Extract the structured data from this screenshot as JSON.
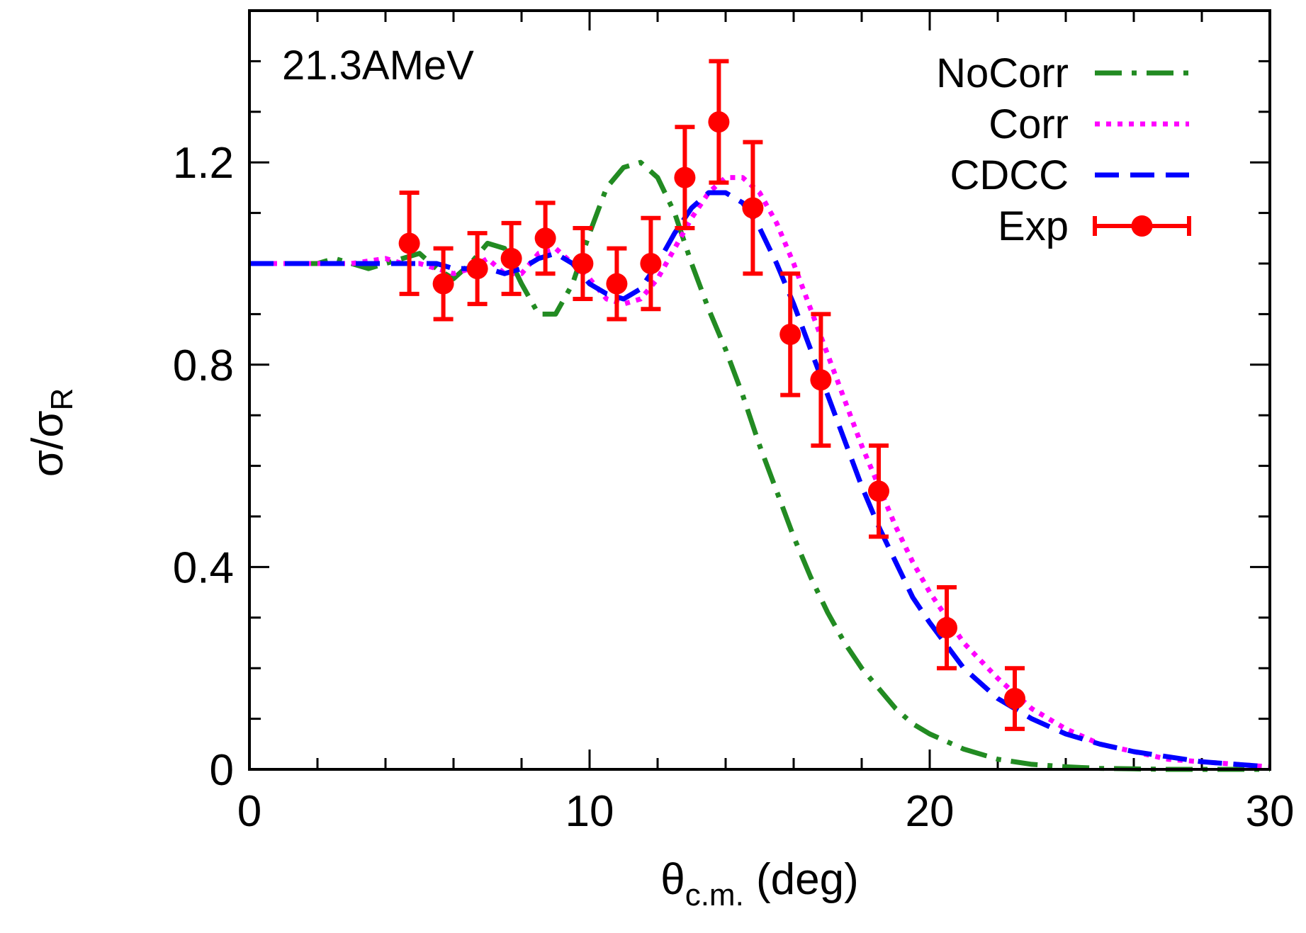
{
  "chart_data": {
    "type": "line",
    "annotation": "21.3AMeV",
    "xlabel": {
      "main": "θ",
      "sub": "c.m.",
      "rest": " (deg)"
    },
    "ylabel": {
      "main": "σ/σ",
      "sub": "R"
    },
    "xlim": [
      0,
      30
    ],
    "ylim": [
      0,
      1.5
    ],
    "x_ticks": [
      0,
      10,
      20,
      30
    ],
    "x_tick_labels": [
      "0",
      "10",
      "20",
      "30"
    ],
    "x_minor_step": 2,
    "y_ticks": [
      0,
      0.4,
      0.8,
      1.2
    ],
    "y_tick_labels": [
      "0",
      "0.4",
      "0.8",
      "1.2"
    ],
    "y_minor_step": 0.1,
    "grid": false,
    "legend_position": "top-right",
    "series": [
      {
        "name": "NoCorr",
        "style": "dash-dot",
        "color": "#228B22",
        "x": [
          0,
          1,
          2,
          2.5,
          3,
          3.5,
          4,
          4.5,
          5,
          5.5,
          6,
          6.5,
          7,
          7.5,
          8,
          8.5,
          9,
          9.5,
          10,
          10.5,
          11,
          11.5,
          12,
          12.5,
          13,
          13.5,
          14,
          14.5,
          15,
          15.5,
          16,
          16.5,
          17,
          17.5,
          18,
          18.5,
          19,
          19.5,
          20,
          21,
          22,
          23,
          24,
          25,
          26,
          27,
          28,
          29,
          30
        ],
        "y": [
          1.0,
          1.0,
          1.0,
          1.01,
          1.0,
          0.99,
          1.0,
          1.01,
          1.02,
          0.99,
          0.97,
          1.0,
          1.04,
          1.03,
          0.96,
          0.9,
          0.9,
          0.96,
          1.06,
          1.15,
          1.19,
          1.2,
          1.17,
          1.1,
          1.0,
          0.91,
          0.83,
          0.74,
          0.64,
          0.55,
          0.46,
          0.38,
          0.31,
          0.25,
          0.2,
          0.16,
          0.12,
          0.09,
          0.07,
          0.04,
          0.02,
          0.01,
          0.005,
          0.002,
          0.001,
          0.0,
          0.0,
          0.0,
          0.0
        ]
      },
      {
        "name": "Corr",
        "style": "dotted",
        "color": "#FF00FF",
        "x": [
          0,
          1,
          2,
          3,
          4,
          4.5,
          5,
          5.5,
          6,
          6.5,
          7,
          7.5,
          8,
          8.5,
          9,
          9.5,
          10,
          10.5,
          11,
          11.5,
          12,
          12.5,
          13,
          13.5,
          14,
          14.5,
          15,
          15.5,
          16,
          16.5,
          17,
          17.5,
          18,
          18.5,
          19,
          19.5,
          20,
          21,
          22,
          23,
          24,
          25,
          26,
          27,
          28,
          29,
          30
        ],
        "y": [
          1.0,
          1.0,
          1.0,
          1.0,
          1.01,
          1.0,
          1.0,
          0.99,
          0.98,
          0.99,
          1.01,
          0.98,
          0.98,
          1.02,
          1.03,
          1.0,
          0.97,
          0.93,
          0.92,
          0.93,
          0.97,
          1.03,
          1.09,
          1.14,
          1.17,
          1.17,
          1.14,
          1.08,
          1.0,
          0.91,
          0.82,
          0.73,
          0.64,
          0.56,
          0.48,
          0.41,
          0.35,
          0.25,
          0.18,
          0.12,
          0.08,
          0.05,
          0.035,
          0.02,
          0.015,
          0.01,
          0.005
        ]
      },
      {
        "name": "CDCC",
        "style": "dashed",
        "color": "#0000FF",
        "x": [
          0,
          1,
          2,
          3,
          4,
          4.5,
          5,
          5.5,
          6,
          6.5,
          7,
          7.5,
          8,
          8.5,
          9,
          9.5,
          10,
          10.5,
          11,
          11.5,
          12,
          12.5,
          13,
          13.5,
          14,
          14.5,
          15,
          15.5,
          16,
          16.5,
          17,
          17.5,
          18,
          18.5,
          19,
          19.5,
          20,
          21,
          22,
          23,
          24,
          25,
          26,
          27,
          28,
          29,
          30
        ],
        "y": [
          1.0,
          1.0,
          1.0,
          1.0,
          1.0,
          1.0,
          1.0,
          1.0,
          0.99,
          0.99,
          0.99,
          0.98,
          0.99,
          1.01,
          1.02,
          1.0,
          0.96,
          0.94,
          0.93,
          0.95,
          1.0,
          1.06,
          1.11,
          1.14,
          1.14,
          1.12,
          1.07,
          1.0,
          0.92,
          0.83,
          0.74,
          0.65,
          0.56,
          0.48,
          0.41,
          0.34,
          0.29,
          0.2,
          0.14,
          0.1,
          0.07,
          0.05,
          0.035,
          0.025,
          0.015,
          0.01,
          0.005
        ]
      }
    ],
    "exp": {
      "name": "Exp",
      "color": "#FF0000",
      "x": [
        4.7,
        5.7,
        6.7,
        7.7,
        8.7,
        9.8,
        10.8,
        11.8,
        12.8,
        13.8,
        14.8,
        15.9,
        16.8,
        18.5,
        20.5,
        22.5
      ],
      "y": [
        1.04,
        0.96,
        0.99,
        1.01,
        1.05,
        1.0,
        0.96,
        1.0,
        1.17,
        1.28,
        1.11,
        0.86,
        0.77,
        0.55,
        0.28,
        0.14
      ],
      "err": [
        0.1,
        0.07,
        0.07,
        0.07,
        0.07,
        0.07,
        0.07,
        0.09,
        0.1,
        0.12,
        0.13,
        0.12,
        0.13,
        0.09,
        0.08,
        0.06
      ]
    }
  }
}
